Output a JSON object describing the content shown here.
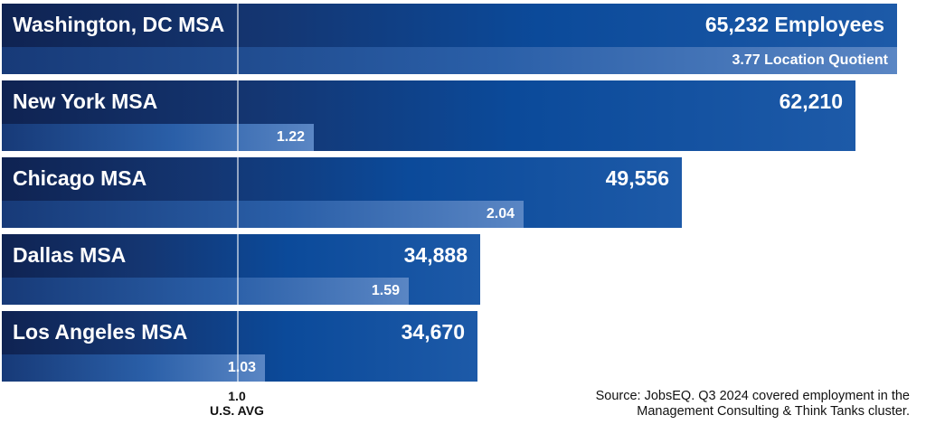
{
  "chart_data": {
    "type": "bar",
    "categories": [
      "Washington, DC MSA",
      "New York MSA",
      "Chicago MSA",
      "Dallas MSA",
      "Los Angeles MSA"
    ],
    "series": [
      {
        "name": "Employees",
        "values": [
          65232,
          62210,
          49556,
          34888,
          34670
        ],
        "labels": [
          "65,232 Employees",
          "62,210",
          "49,556",
          "34,888",
          "34,670"
        ]
      },
      {
        "name": "Location Quotient",
        "values": [
          3.77,
          1.22,
          2.04,
          1.59,
          1.03
        ],
        "labels": [
          "3.77 Location Quotient",
          "1.22",
          "2.04",
          "1.59",
          "1.03"
        ]
      }
    ],
    "reference_line": {
      "value": 1.0,
      "label_value": "1.0",
      "label_text": "U.S. AVG"
    },
    "source": "Source: JobsEQ. Q3 2024 covered employment in the Management Consulting & Think Tanks cluster.",
    "colors": {
      "bar_dark": "#0f2352",
      "bar_mid": "#0b4a9a",
      "lq_light": "#5a86c4",
      "text": "#ffffff"
    }
  }
}
